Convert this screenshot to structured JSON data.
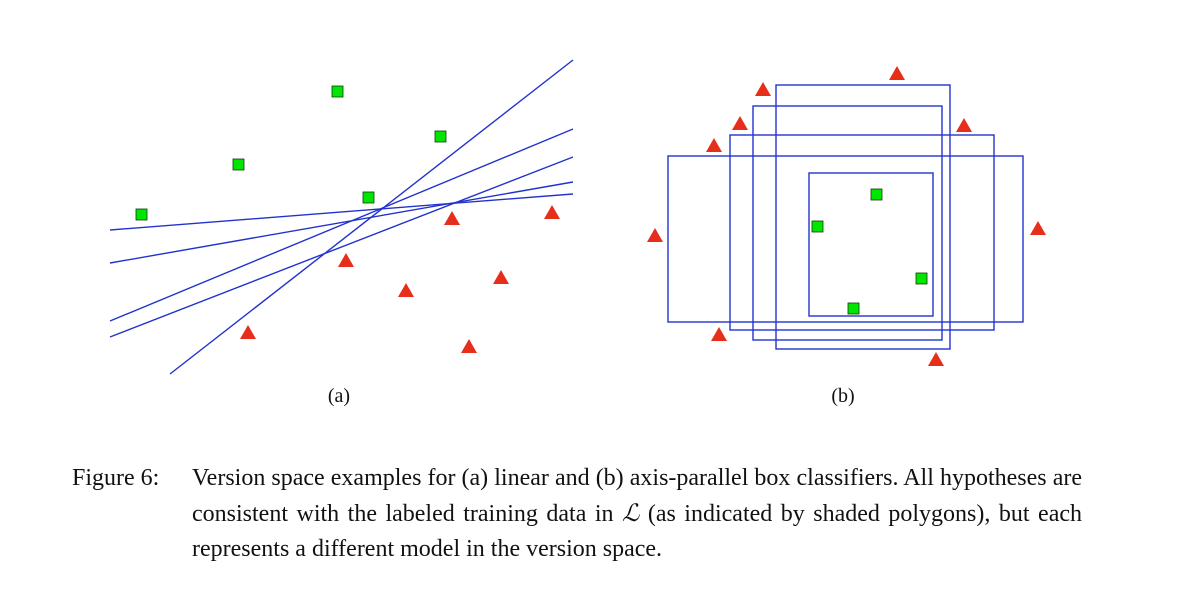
{
  "figure": {
    "subcaptions": {
      "a": "(a)",
      "b": "(b)"
    },
    "caption_label": "Figure 6:",
    "caption_text_before": "Version space examples for (a) linear and (b) axis-parallel box classifiers. All hypotheses are consistent with the labeled training data in ",
    "caption_symbol": "ℒ",
    "caption_text_after": " (as indicated by shaded polygons), but each represents a different model in the version space."
  },
  "colors": {
    "positive": "#00e600",
    "negative": "#e62e1a",
    "hypothesis": "#2233cc"
  },
  "legend_marks": {
    "positive": "square",
    "negative": "triangle"
  }
}
